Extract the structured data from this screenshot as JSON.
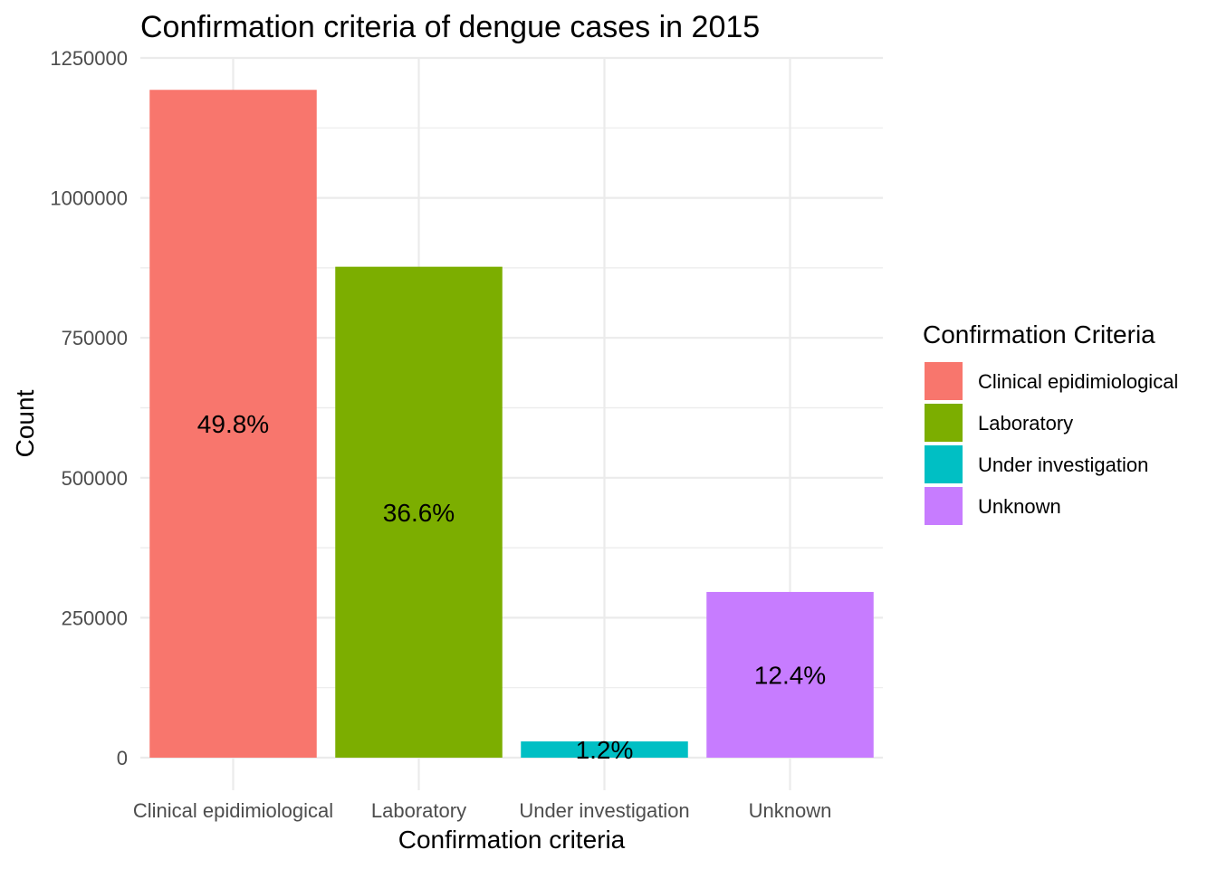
{
  "chart_data": {
    "type": "bar",
    "title": "Confirmation criteria of dengue cases in 2015",
    "xlabel": "Confirmation criteria",
    "ylabel": "Count",
    "categories": [
      "Clinical epidimiological",
      "Laboratory",
      "Under investigation",
      "Unknown"
    ],
    "values": [
      1193000,
      877000,
      29000,
      296000
    ],
    "labels": [
      "49.8%",
      "36.6%",
      "1.2%",
      "12.4%"
    ],
    "colors": [
      "#F8766D",
      "#7CAE00",
      "#00BFC4",
      "#C77CFF"
    ],
    "ylim": [
      0,
      1250000
    ],
    "yticks": [
      0,
      250000,
      500000,
      750000,
      1000000,
      1250000
    ],
    "ytick_labels": [
      "0",
      "250000",
      "500000",
      "750000",
      "1000000",
      "1250000"
    ],
    "grid": true,
    "legend": {
      "title": "Confirmation Criteria",
      "position": "right",
      "entries": [
        "Clinical epidimiological",
        "Laboratory",
        "Under investigation",
        "Unknown"
      ]
    }
  }
}
